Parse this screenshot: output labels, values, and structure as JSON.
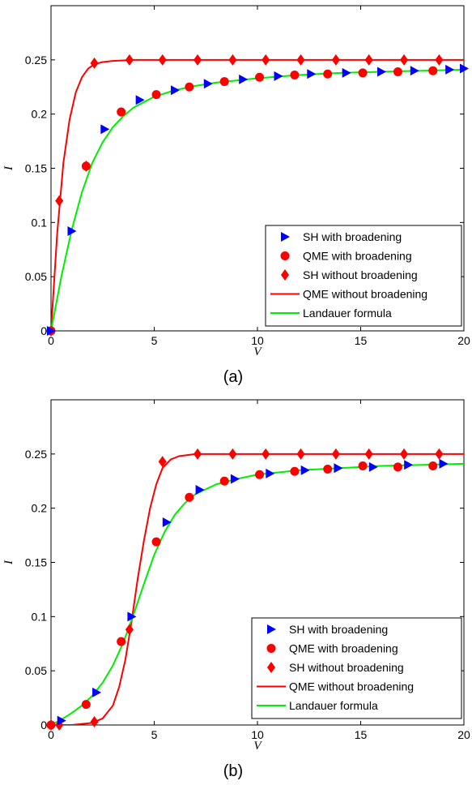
{
  "chart_data": [
    {
      "type": "line",
      "panel_label": "(a)",
      "xlabel": "V",
      "ylabel": "I",
      "xlim": [
        0,
        20
      ],
      "ylim": [
        0,
        0.3
      ],
      "xticks": [
        0,
        5,
        10,
        15,
        20
      ],
      "yticks": [
        0,
        0.05,
        0.1,
        0.15,
        0.2,
        0.25
      ],
      "xtick_labels": [
        "0",
        "5",
        "10",
        "15",
        "20"
      ],
      "ytick_labels": [
        "0",
        "0.05",
        "0.1",
        "0.15",
        "0.2",
        "0.25"
      ],
      "grid": false,
      "legend_position": "bottom-right",
      "series": [
        {
          "name": "SH with broadening",
          "kind": "marker",
          "marker": "triangle-right",
          "color": "#0000ff",
          "x": [
            0,
            1.0,
            2.6,
            4.3,
            6.0,
            7.6,
            9.3,
            11.0,
            12.6,
            14.3,
            16.0,
            17.6,
            19.3,
            20.0
          ],
          "y": [
            0,
            0.092,
            0.186,
            0.213,
            0.222,
            0.228,
            0.232,
            0.235,
            0.237,
            0.238,
            0.239,
            0.24,
            0.241,
            0.242
          ]
        },
        {
          "name": "QME with broadening",
          "kind": "marker",
          "marker": "circle",
          "color": "#ff0000",
          "x": [
            0,
            1.7,
            3.4,
            5.1,
            6.7,
            8.4,
            10.1,
            11.8,
            13.4,
            15.1,
            16.8,
            18.5
          ],
          "y": [
            0,
            0.152,
            0.202,
            0.218,
            0.225,
            0.23,
            0.234,
            0.236,
            0.237,
            0.238,
            0.239,
            0.24
          ]
        },
        {
          "name": "SH without broadening",
          "kind": "marker",
          "marker": "diamond",
          "color": "#ff0000",
          "x": [
            0,
            0.4,
            1.7,
            2.1,
            3.8,
            5.4,
            7.1,
            8.8,
            10.4,
            12.1,
            13.8,
            15.4,
            17.1,
            18.8
          ],
          "y": [
            0,
            0.12,
            0.152,
            0.247,
            0.25,
            0.25,
            0.25,
            0.25,
            0.25,
            0.25,
            0.25,
            0.25,
            0.25,
            0.25
          ]
        },
        {
          "name": "QME without broadening",
          "kind": "line",
          "color": "#ff0000",
          "x": [
            0,
            0.3,
            0.6,
            0.9,
            1.2,
            1.5,
            1.8,
            2.1,
            2.5,
            3.0,
            4.0,
            6.0,
            10.0,
            15.0,
            20.0
          ],
          "y": [
            0,
            0.09,
            0.155,
            0.195,
            0.22,
            0.234,
            0.242,
            0.246,
            0.248,
            0.249,
            0.25,
            0.25,
            0.25,
            0.25,
            0.25
          ]
        },
        {
          "name": "Landauer formula",
          "kind": "line",
          "color": "#00ee00",
          "x": [
            0,
            0.5,
            1.0,
            1.5,
            2.0,
            2.5,
            3.0,
            3.5,
            4.0,
            5.0,
            6.0,
            7.0,
            8.0,
            10.0,
            12.0,
            14.0,
            16.0,
            18.0,
            20.0
          ],
          "y": [
            0,
            0.05,
            0.093,
            0.128,
            0.155,
            0.174,
            0.188,
            0.198,
            0.206,
            0.216,
            0.222,
            0.226,
            0.229,
            0.233,
            0.236,
            0.238,
            0.239,
            0.24,
            0.241
          ]
        }
      ]
    },
    {
      "type": "line",
      "panel_label": "(b)",
      "xlabel": "V",
      "ylabel": "I",
      "xlim": [
        0,
        20
      ],
      "ylim": [
        0,
        0.3
      ],
      "xticks": [
        0,
        5,
        10,
        15,
        20
      ],
      "yticks": [
        0,
        0.05,
        0.1,
        0.15,
        0.2,
        0.25
      ],
      "xtick_labels": [
        "0",
        "5",
        "10",
        "15",
        "20"
      ],
      "ytick_labels": [
        "0",
        "0.05",
        "0.1",
        "0.15",
        "0.2",
        "0.25"
      ],
      "grid": false,
      "legend_position": "bottom-right",
      "series": [
        {
          "name": "SH with broadening",
          "kind": "marker",
          "marker": "triangle-right",
          "color": "#0000ff",
          "x": [
            0.5,
            2.2,
            3.9,
            5.6,
            7.2,
            8.9,
            10.6,
            12.3,
            13.9,
            15.6,
            17.3,
            19.0
          ],
          "y": [
            0.004,
            0.03,
            0.1,
            0.187,
            0.217,
            0.227,
            0.232,
            0.235,
            0.237,
            0.238,
            0.24,
            0.241
          ]
        },
        {
          "name": "QME with broadening",
          "kind": "marker",
          "marker": "circle",
          "color": "#ff0000",
          "x": [
            0,
            1.7,
            3.4,
            5.1,
            6.7,
            8.4,
            10.1,
            11.8,
            13.4,
            15.1,
            16.8,
            18.5
          ],
          "y": [
            0,
            0.019,
            0.077,
            0.169,
            0.21,
            0.225,
            0.231,
            0.234,
            0.236,
            0.239,
            0.238,
            0.239
          ]
        },
        {
          "name": "SH without broadening",
          "kind": "marker",
          "marker": "diamond",
          "color": "#ff0000",
          "x": [
            0,
            0.4,
            2.1,
            3.8,
            5.4,
            7.1,
            8.8,
            10.4,
            12.1,
            13.8,
            15.4,
            17.1,
            18.8
          ],
          "y": [
            0,
            0.0,
            0.003,
            0.088,
            0.243,
            0.25,
            0.25,
            0.25,
            0.25,
            0.25,
            0.25,
            0.25,
            0.25
          ]
        },
        {
          "name": "QME without broadening",
          "kind": "line",
          "color": "#ff0000",
          "x": [
            0,
            1.0,
            2.0,
            2.5,
            3.0,
            3.3,
            3.6,
            3.9,
            4.2,
            4.5,
            4.8,
            5.1,
            5.4,
            5.8,
            6.2,
            7.0,
            8.0,
            10.0,
            15.0,
            20.0
          ],
          "y": [
            0,
            0.0,
            0.002,
            0.006,
            0.018,
            0.035,
            0.06,
            0.095,
            0.135,
            0.17,
            0.2,
            0.222,
            0.237,
            0.245,
            0.248,
            0.25,
            0.25,
            0.25,
            0.25,
            0.25
          ]
        },
        {
          "name": "Landauer formula",
          "kind": "line",
          "color": "#00ee00",
          "x": [
            0,
            0.5,
            1.0,
            1.5,
            2.0,
            2.5,
            3.0,
            3.5,
            4.0,
            4.5,
            5.0,
            5.5,
            6.0,
            6.5,
            7.0,
            8.0,
            9.0,
            10.0,
            12.0,
            14.0,
            16.0,
            18.0,
            20.0
          ],
          "y": [
            0,
            0.005,
            0.011,
            0.018,
            0.027,
            0.039,
            0.055,
            0.076,
            0.102,
            0.13,
            0.157,
            0.178,
            0.194,
            0.205,
            0.213,
            0.222,
            0.227,
            0.231,
            0.235,
            0.237,
            0.239,
            0.24,
            0.241
          ]
        }
      ]
    }
  ]
}
